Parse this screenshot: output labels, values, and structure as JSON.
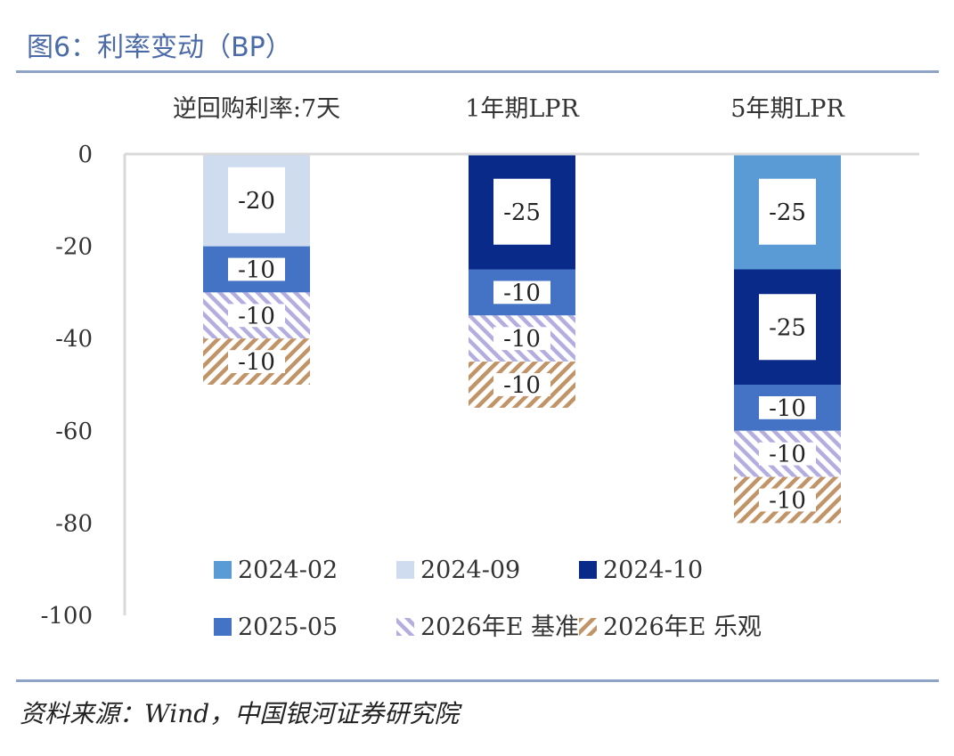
{
  "header": {
    "title": "图6：利率变动（BP）"
  },
  "footer": {
    "source": "资料来源：Wind，中国银河证券研究院"
  },
  "chart_data": {
    "type": "bar",
    "stacked": true,
    "title": "图6：利率变动（BP）",
    "categories": [
      "逆回购利率:7天",
      "1年期LPR",
      "5年期LPR"
    ],
    "ylim": [
      -100,
      0
    ],
    "yticks": [
      0,
      -20,
      -40,
      -60,
      -80,
      -100
    ],
    "ytick_labels": [
      "0",
      "-20",
      "-40",
      "-60",
      "-80",
      "-100"
    ],
    "series": [
      {
        "name": "2024-02",
        "color": "#5b9bd5",
        "pattern": "solid",
        "values": [
          0,
          0,
          -25
        ]
      },
      {
        "name": "2024-09",
        "color": "#cfdcf0",
        "pattern": "solid",
        "values": [
          -20,
          0,
          0
        ]
      },
      {
        "name": "2024-10",
        "color": "#0a2a8a",
        "pattern": "solid",
        "values": [
          0,
          -25,
          -25
        ]
      },
      {
        "name": "2025-05",
        "color": "#4472c4",
        "pattern": "solid",
        "values": [
          -10,
          -10,
          -10
        ]
      },
      {
        "name": "2026年E 基准",
        "color": "#b4aee0",
        "pattern": "hatch",
        "values": [
          -10,
          -10,
          -10
        ]
      },
      {
        "name": "2026年E 乐观",
        "color": "#c19468",
        "pattern": "hatch",
        "values": [
          -10,
          -10,
          -10
        ]
      }
    ],
    "legend_position": "bottom",
    "segment_labels": [
      [
        "-20",
        "-10",
        "-10",
        "-10"
      ],
      [
        "-25",
        "-10",
        "-10",
        "-10"
      ],
      [
        "-25",
        "-25",
        "-10",
        "-10",
        "-10"
      ]
    ]
  }
}
